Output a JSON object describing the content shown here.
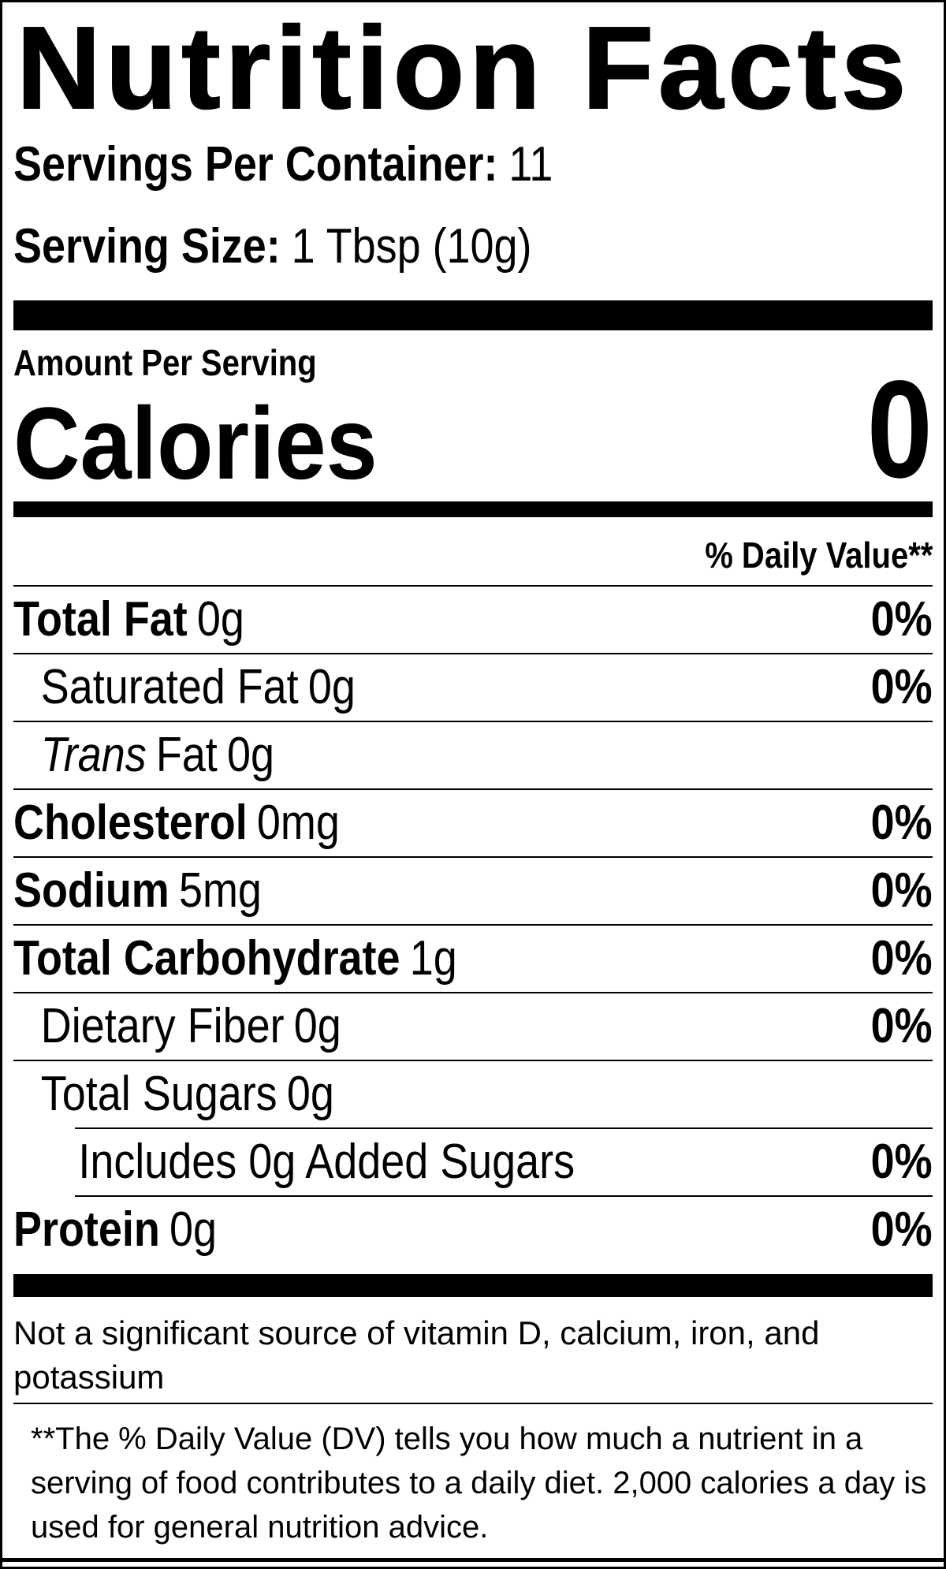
{
  "label": {
    "title": "Nutrition Facts",
    "servings_per_container": {
      "label": "Servings Per Container:",
      "value": "11"
    },
    "serving_size": {
      "label": "Serving Size:",
      "value": "1 Tbsp (10g)"
    },
    "amount_per_serving": "Amount Per Serving",
    "calories": {
      "label": "Calories",
      "value": "0"
    },
    "daily_value_header": "% Daily Value**",
    "rows": [
      {
        "name": "Total Fat",
        "amount": "0g",
        "dv": "0%"
      },
      {
        "name": "Saturated Fat",
        "amount": "0g",
        "dv": "0%"
      },
      {
        "name_italic": "Trans",
        "name": "Fat",
        "amount": "0g",
        "dv": ""
      },
      {
        "name": "Cholesterol",
        "amount": "0mg",
        "dv": "0%"
      },
      {
        "name": "Sodium",
        "amount": "5mg",
        "dv": "0%"
      },
      {
        "name": "Total Carbohydrate",
        "amount": "1g",
        "dv": "0%"
      },
      {
        "name": "Dietary Fiber",
        "amount": "0g",
        "dv": "0%"
      },
      {
        "name": "Total Sugars",
        "amount": "0g",
        "dv": ""
      },
      {
        "name": "Includes 0g Added Sugars",
        "amount": "",
        "dv": "0%"
      },
      {
        "name": "Protein",
        "amount": "0g",
        "dv": "0%"
      }
    ],
    "not_significant_note": "Not a significant source of vitamin D, calcium, iron, and potassium",
    "daily_value_footnote": "**The % Daily Value (DV) tells you how much a nutrient in a serving of food contributes to a daily diet. 2,000 calories a day is used for general nutrition advice.",
    "colors": {
      "text": "#000000",
      "background": "#ffffff"
    }
  }
}
